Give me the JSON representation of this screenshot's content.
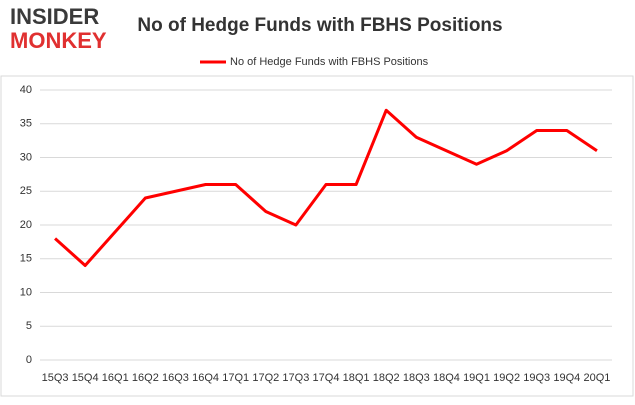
{
  "logo": {
    "line1": "INSIDER",
    "line2": "MONKEY"
  },
  "chart_data": {
    "type": "line",
    "title": "No of Hedge Funds with FBHS Positions",
    "categories": [
      "15Q3",
      "15Q4",
      "16Q1",
      "16Q2",
      "16Q3",
      "16Q4",
      "17Q1",
      "17Q2",
      "17Q3",
      "17Q4",
      "18Q1",
      "18Q2",
      "18Q3",
      "18Q4",
      "19Q1",
      "19Q2",
      "19Q3",
      "19Q4",
      "20Q1"
    ],
    "series": [
      {
        "name": "No of Hedge Funds with FBHS Positions",
        "color": "#ff0000",
        "values": [
          18,
          14,
          19,
          24,
          25,
          26,
          26,
          22,
          20,
          26,
          26,
          37,
          33,
          31,
          29,
          31,
          34,
          34,
          31
        ]
      }
    ],
    "ylim": [
      0,
      40
    ],
    "yticks": [
      0,
      5,
      10,
      15,
      20,
      25,
      30,
      35,
      40
    ],
    "grid": true,
    "legend": "top"
  }
}
